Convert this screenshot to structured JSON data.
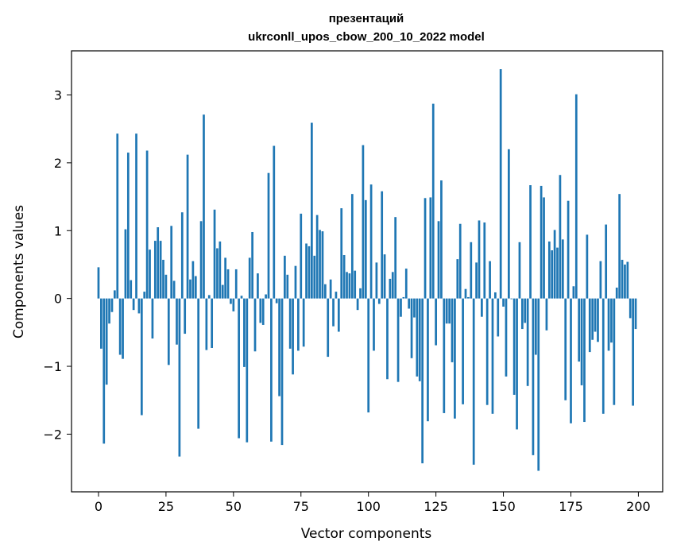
{
  "chart_data": {
    "type": "bar",
    "title": "презентаций",
    "subtitle": "ukrconll_upos_cbow_200_10_2022 model",
    "xlabel": "Vector components",
    "ylabel": "Components values",
    "xlim": [
      -10,
      209
    ],
    "ylim": [
      -2.85,
      3.65
    ],
    "xticks": [
      0,
      25,
      50,
      75,
      100,
      125,
      150,
      175,
      200
    ],
    "xtick_labels": [
      "0",
      "25",
      "50",
      "75",
      "100",
      "125",
      "150",
      "175",
      "200"
    ],
    "yticks": [
      -2,
      -1,
      0,
      1,
      2,
      3
    ],
    "ytick_labels": [
      "−2",
      "−1",
      "0",
      "1",
      "2",
      "3"
    ],
    "grid": false,
    "bar_color": "#1f77b4",
    "x": [
      0,
      1,
      2,
      3,
      4,
      5,
      6,
      7,
      8,
      9,
      10,
      11,
      12,
      13,
      14,
      15,
      16,
      17,
      18,
      19,
      20,
      21,
      22,
      23,
      24,
      25,
      26,
      27,
      28,
      29,
      30,
      31,
      32,
      33,
      34,
      35,
      36,
      37,
      38,
      39,
      40,
      41,
      42,
      43,
      44,
      45,
      46,
      47,
      48,
      49,
      50,
      51,
      52,
      53,
      54,
      55,
      56,
      57,
      58,
      59,
      60,
      61,
      62,
      63,
      64,
      65,
      66,
      67,
      68,
      69,
      70,
      71,
      72,
      73,
      74,
      75,
      76,
      77,
      78,
      79,
      80,
      81,
      82,
      83,
      84,
      85,
      86,
      87,
      88,
      89,
      90,
      91,
      92,
      93,
      94,
      95,
      96,
      97,
      98,
      99,
      100,
      101,
      102,
      103,
      104,
      105,
      106,
      107,
      108,
      109,
      110,
      111,
      112,
      113,
      114,
      115,
      116,
      117,
      118,
      119,
      120,
      121,
      122,
      123,
      124,
      125,
      126,
      127,
      128,
      129,
      130,
      131,
      132,
      133,
      134,
      135,
      136,
      137,
      138,
      139,
      140,
      141,
      142,
      143,
      144,
      145,
      146,
      147,
      148,
      149,
      150,
      151,
      152,
      153,
      154,
      155,
      156,
      157,
      158,
      159,
      160,
      161,
      162,
      163,
      164,
      165,
      166,
      167,
      168,
      169,
      170,
      171,
      172,
      173,
      174,
      175,
      176,
      177,
      178,
      179,
      180,
      181,
      182,
      183,
      184,
      185,
      186,
      187,
      188,
      189,
      190,
      191,
      192,
      193,
      194,
      195,
      196,
      197,
      198,
      199
    ],
    "values": [
      0.46,
      -0.74,
      -2.14,
      -1.27,
      -0.37,
      -0.2,
      0.12,
      2.43,
      -0.83,
      -0.89,
      1.02,
      2.15,
      0.27,
      -0.17,
      2.43,
      -0.22,
      -1.72,
      0.1,
      2.18,
      0.72,
      -0.59,
      0.85,
      1.05,
      0.85,
      0.57,
      0.35,
      -0.98,
      1.07,
      0.26,
      -0.68,
      -2.33,
      1.27,
      -0.52,
      2.12,
      0.28,
      0.55,
      0.33,
      -1.92,
      1.14,
      2.71,
      -0.76,
      0.05,
      -0.73,
      1.31,
      0.74,
      0.84,
      0.2,
      0.6,
      0.43,
      -0.08,
      -0.19,
      0.43,
      -2.06,
      0.04,
      -1.01,
      -2.12,
      0.6,
      0.98,
      -0.78,
      0.37,
      -0.36,
      -0.39,
      0.06,
      1.85,
      -2.11,
      2.25,
      -0.07,
      -1.44,
      -2.16,
      0.63,
      0.35,
      -0.74,
      -1.12,
      0.48,
      -0.77,
      1.25,
      -0.71,
      0.81,
      0.77,
      2.59,
      0.63,
      1.23,
      1.01,
      0.99,
      0.21,
      -0.86,
      0.28,
      -0.41,
      0.1,
      -0.49,
      1.33,
      0.64,
      0.39,
      0.37,
      1.54,
      0.41,
      -0.17,
      0.15,
      2.26,
      1.45,
      -1.68,
      1.68,
      -0.77,
      0.53,
      -0.08,
      1.58,
      0.65,
      -1.19,
      0.29,
      0.39,
      1.2,
      -1.23,
      -0.27,
      0.02,
      0.44,
      -0.15,
      -0.88,
      -0.28,
      -1.15,
      -1.22,
      -2.43,
      1.48,
      -1.81,
      1.49,
      2.87,
      -0.69,
      1.14,
      1.74,
      -1.69,
      -0.37,
      -0.37,
      -0.94,
      -1.77,
      0.58,
      1.1,
      -1.56,
      0.14,
      0.02,
      0.83,
      -2.45,
      0.53,
      1.15,
      -0.27,
      1.12,
      -1.57,
      0.55,
      -1.7,
      0.09,
      -0.56,
      3.38,
      -0.12,
      -1.15,
      2.2,
      -0.01,
      -1.42,
      -1.93,
      0.83,
      -0.45,
      -0.36,
      -1.29,
      1.67,
      -2.31,
      -0.83,
      -2.54,
      1.66,
      1.49,
      -0.47,
      0.84,
      0.71,
      1.01,
      0.75,
      1.82,
      0.87,
      -1.5,
      1.44,
      -1.84,
      0.18,
      3.01,
      -0.93,
      -1.28,
      -1.82,
      0.94,
      -0.79,
      -0.61,
      -0.49,
      -0.64,
      0.55,
      -1.7,
      1.09,
      -0.77,
      -0.65,
      -1.57,
      0.16,
      1.54,
      0.57,
      0.5,
      0.54,
      -0.29,
      -1.58,
      -0.45
    ]
  }
}
